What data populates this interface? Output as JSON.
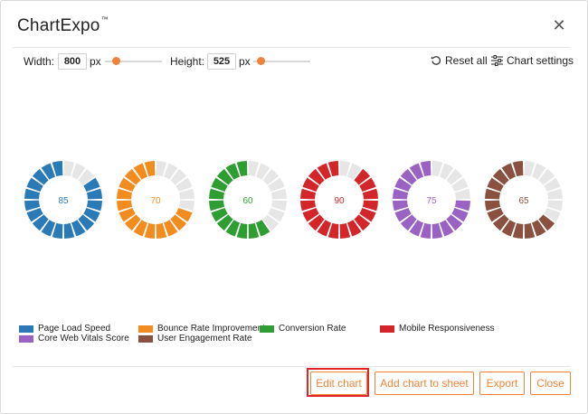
{
  "header": {
    "title": "ChartExpo",
    "tm": "™",
    "close_glyph": "✕"
  },
  "controls": {
    "width_label": "Width:",
    "width_value": "800",
    "width_unit": "px",
    "height_label": "Height:",
    "height_value": "525",
    "height_unit": "px",
    "reset_label": "Reset all",
    "settings_label": "Chart settings"
  },
  "chart_data": {
    "type": "donut",
    "segments_per_ring": 20,
    "track_color": "#e6e6e6",
    "series": [
      {
        "name": "Page Load Speed",
        "value": 85,
        "color": "#2a7ab8"
      },
      {
        "name": "Bounce Rate Improvement",
        "value": 70,
        "color": "#f28c1e"
      },
      {
        "name": "Conversion Rate",
        "value": 60,
        "color": "#2e9e33"
      },
      {
        "name": "Mobile Responsiveness",
        "value": 90,
        "color": "#d3262b"
      },
      {
        "name": "Core Web Vitals Score",
        "value": 75,
        "color": "#9a62c2"
      },
      {
        "name": "User Engagement Rate",
        "value": 65,
        "color": "#8a5140"
      }
    ]
  },
  "footer": {
    "edit_label": "Edit chart",
    "add_label": "Add chart to sheet",
    "export_label": "Export",
    "close_label": "Close"
  }
}
